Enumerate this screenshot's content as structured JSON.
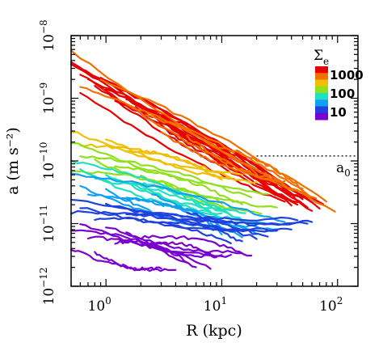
{
  "chart_data": {
    "type": "line",
    "xlabel": "R (kpc)",
    "ylabel": "a (m s⁻²)",
    "xscale": "log",
    "yscale": "log",
    "xlim": [
      0.5,
      150
    ],
    "ylim": [
      1e-12,
      1e-08
    ],
    "grid": false,
    "x_ticks": [
      {
        "base": "10",
        "exp": "0",
        "value": 1
      },
      {
        "base": "10",
        "exp": "1",
        "value": 10
      },
      {
        "base": "10",
        "exp": "2",
        "value": 100
      }
    ],
    "y_ticks": [
      {
        "base": "10",
        "exp": "−12",
        "value": 1e-12
      },
      {
        "base": "10",
        "exp": "−11",
        "value": 1e-11
      },
      {
        "base": "10",
        "exp": "−10",
        "value": 1e-10
      },
      {
        "base": "10",
        "exp": "−9",
        "value": 1e-09
      },
      {
        "base": "10",
        "exp": "−8",
        "value": 1e-08
      }
    ],
    "reference_line": {
      "label": "a",
      "label_sub": "0",
      "value": 1.2e-10,
      "style": "dotted",
      "from_x": 20
    },
    "legend": {
      "placement": "top-right",
      "title": "Σ",
      "title_sub": "e",
      "entries": [
        "1000",
        "100",
        "10"
      ],
      "colors": [
        "#e80000",
        "#f07000",
        "#f0c000",
        "#90e020",
        "#20e0c0",
        "#10a0f0",
        "#2040e0",
        "#7a00d0"
      ]
    },
    "series": [
      {
        "color": "#e80000",
        "x": [
          0.5,
          75
        ],
        "y": [
          4e-09,
          2e-11
        ]
      },
      {
        "color": "#e80000",
        "x": [
          0.55,
          60
        ],
        "y": [
          3e-09,
          2.2e-11
        ]
      },
      {
        "color": "#e80000",
        "x": [
          0.6,
          50
        ],
        "y": [
          2.5e-09,
          2.5e-11
        ]
      },
      {
        "color": "#e80000",
        "x": [
          0.7,
          55
        ],
        "y": [
          2e-09,
          1.8e-11
        ]
      },
      {
        "color": "#e80000",
        "x": [
          0.8,
          45
        ],
        "y": [
          1.6e-09,
          2e-11
        ]
      },
      {
        "color": "#e80000",
        "x": [
          1.0,
          40
        ],
        "y": [
          1.4e-09,
          2e-11
        ]
      },
      {
        "color": "#e80000",
        "x": [
          0.6,
          35
        ],
        "y": [
          1.2e-09,
          2.2e-11
        ]
      },
      {
        "color": "#e80000",
        "x": [
          1.5,
          70
        ],
        "y": [
          1e-09,
          1.8e-11
        ]
      },
      {
        "color": "#e80000",
        "x": [
          2.0,
          50
        ],
        "y": [
          8e-10,
          2.5e-11
        ]
      },
      {
        "color": "#e80000",
        "x": [
          1.2,
          30
        ],
        "y": [
          9e-10,
          3e-11
        ]
      },
      {
        "color": "#e80000",
        "x": [
          2.5,
          45
        ],
        "y": [
          6e-10,
          2.2e-11
        ]
      },
      {
        "color": "#e80000",
        "x": [
          3.0,
          60
        ],
        "y": [
          5e-10,
          1.6e-11
        ]
      },
      {
        "color": "#e80000",
        "x": [
          0.9,
          25
        ],
        "y": [
          2.2e-09,
          5e-11
        ]
      },
      {
        "color": "#e80000",
        "x": [
          4.0,
          40
        ],
        "y": [
          4e-10,
          3e-11
        ]
      },
      {
        "color": "#e80000",
        "x": [
          1.8,
          20
        ],
        "y": [
          7e-10,
          6e-11
        ]
      },
      {
        "color": "#e80000",
        "x": [
          0.5,
          30
        ],
        "y": [
          3.5e-09,
          4e-11
        ]
      },
      {
        "color": "#f07000",
        "x": [
          0.5,
          95
        ],
        "y": [
          5.5e-09,
          1.6e-11
        ]
      },
      {
        "color": "#f07000",
        "x": [
          0.9,
          80
        ],
        "y": [
          2e-09,
          2.2e-11
        ]
      },
      {
        "color": "#f07000",
        "x": [
          1.5,
          55
        ],
        "y": [
          8e-10,
          2.8e-11
        ]
      },
      {
        "color": "#f07000",
        "x": [
          2.2,
          65
        ],
        "y": [
          5.5e-10,
          2.5e-11
        ]
      },
      {
        "color": "#f07000",
        "x": [
          3.0,
          35
        ],
        "y": [
          2.8e-10,
          4.5e-11
        ]
      },
      {
        "color": "#f07000",
        "x": [
          0.6,
          20
        ],
        "y": [
          1.5e-09,
          6.5e-11
        ]
      },
      {
        "color": "#f07000",
        "x": [
          5.0,
          30
        ],
        "y": [
          2.5e-10,
          5e-11
        ]
      },
      {
        "color": "#f07000",
        "x": [
          8.0,
          50
        ],
        "y": [
          1.8e-10,
          3.5e-11
        ]
      },
      {
        "color": "#f0c000",
        "x": [
          0.5,
          15
        ],
        "y": [
          3e-10,
          6e-11
        ]
      },
      {
        "color": "#f0c000",
        "x": [
          0.6,
          12
        ],
        "y": [
          1.8e-10,
          5.5e-11
        ]
      },
      {
        "color": "#f0c000",
        "x": [
          1.0,
          20
        ],
        "y": [
          2.2e-10,
          4.5e-11
        ]
      },
      {
        "color": "#f0c000",
        "x": [
          1.5,
          10
        ],
        "y": [
          1.5e-10,
          5e-11
        ]
      },
      {
        "color": "#90e020",
        "x": [
          0.5,
          25
        ],
        "y": [
          2e-10,
          3e-11
        ]
      },
      {
        "color": "#90e020",
        "x": [
          0.6,
          18
        ],
        "y": [
          1.2e-10,
          2.5e-11
        ]
      },
      {
        "color": "#90e020",
        "x": [
          0.8,
          30
        ],
        "y": [
          1e-10,
          1.8e-11
        ]
      },
      {
        "color": "#90e020",
        "x": [
          1.2,
          15
        ],
        "y": [
          8e-11,
          2e-11
        ]
      },
      {
        "color": "#90e020",
        "x": [
          2.0,
          22
        ],
        "y": [
          6e-11,
          1.5e-11
        ]
      },
      {
        "color": "#90e020",
        "x": [
          0.5,
          10
        ],
        "y": [
          7e-11,
          2.2e-11
        ]
      },
      {
        "color": "#90e020",
        "x": [
          3.0,
          12
        ],
        "y": [
          5e-11,
          1.8e-11
        ]
      },
      {
        "color": "#20e0c0",
        "x": [
          0.5,
          14
        ],
        "y": [
          1e-10,
          1.2e-11
        ]
      },
      {
        "color": "#20e0c0",
        "x": [
          0.6,
          10
        ],
        "y": [
          7e-11,
          1.4e-11
        ]
      },
      {
        "color": "#20e0c0",
        "x": [
          0.8,
          20
        ],
        "y": [
          5e-11,
          9e-12
        ]
      },
      {
        "color": "#20e0c0",
        "x": [
          1.0,
          16
        ],
        "y": [
          6e-11,
          1.5e-11
        ]
      },
      {
        "color": "#20e0c0",
        "x": [
          1.5,
          8
        ],
        "y": [
          4.5e-11,
          1.5e-11
        ]
      },
      {
        "color": "#20e0c0",
        "x": [
          2.0,
          25
        ],
        "y": [
          4e-11,
          1e-11
        ]
      },
      {
        "color": "#10a0f0",
        "x": [
          0.5,
          35
        ],
        "y": [
          6e-11,
          1e-11
        ]
      },
      {
        "color": "#10a0f0",
        "x": [
          0.6,
          12
        ],
        "y": [
          4e-11,
          8e-12
        ]
      },
      {
        "color": "#10a0f0",
        "x": [
          0.7,
          20
        ],
        "y": [
          3e-11,
          7e-12
        ]
      },
      {
        "color": "#10a0f0",
        "x": [
          1.0,
          9
        ],
        "y": [
          3.5e-11,
          9e-12
        ]
      },
      {
        "color": "#10a0f0",
        "x": [
          1.5,
          15
        ],
        "y": [
          2.5e-11,
          6e-12
        ]
      },
      {
        "color": "#10a0f0",
        "x": [
          2.5,
          30
        ],
        "y": [
          3e-11,
          8e-12
        ]
      },
      {
        "color": "#10a0f0",
        "x": [
          3.0,
          10
        ],
        "y": [
          2e-11,
          7e-12
        ]
      },
      {
        "color": "#2040e0",
        "x": [
          0.5,
          45
        ],
        "y": [
          2.5e-11,
          1.2e-11
        ]
      },
      {
        "color": "#2040e0",
        "x": [
          0.5,
          20
        ],
        "y": [
          1.5e-11,
          6e-12
        ]
      },
      {
        "color": "#2040e0",
        "x": [
          0.6,
          30
        ],
        "y": [
          1.8e-11,
          8e-12
        ]
      },
      {
        "color": "#2040e0",
        "x": [
          0.8,
          12
        ],
        "y": [
          1.2e-11,
          5e-12
        ]
      },
      {
        "color": "#2040e0",
        "x": [
          1.0,
          55
        ],
        "y": [
          2e-11,
          1e-11
        ]
      },
      {
        "color": "#2040e0",
        "x": [
          1.5,
          25
        ],
        "y": [
          1.4e-11,
          6e-12
        ]
      },
      {
        "color": "#2040e0",
        "x": [
          2.0,
          40
        ],
        "y": [
          1.6e-11,
          8e-12
        ]
      },
      {
        "color": "#2040e0",
        "x": [
          3.0,
          15
        ],
        "y": [
          1e-11,
          5e-12
        ]
      },
      {
        "color": "#2040e0",
        "x": [
          5.0,
          60
        ],
        "y": [
          1.5e-11,
          1.1e-11
        ]
      },
      {
        "color": "#7a00d0",
        "x": [
          0.5,
          8
        ],
        "y": [
          8e-12,
          2e-12
        ]
      },
      {
        "color": "#7a00d0",
        "x": [
          0.6,
          12
        ],
        "y": [
          1e-11,
          3e-12
        ]
      },
      {
        "color": "#7a00d0",
        "x": [
          0.7,
          6
        ],
        "y": [
          6e-12,
          2e-12
        ]
      },
      {
        "color": "#7a00d0",
        "x": [
          1.0,
          15
        ],
        "y": [
          9e-12,
          3.5e-12
        ]
      },
      {
        "color": "#7a00d0",
        "x": [
          1.2,
          5
        ],
        "y": [
          5e-12,
          2.5e-12
        ]
      },
      {
        "color": "#7a00d0",
        "x": [
          1.5,
          10
        ],
        "y": [
          7e-12,
          3e-12
        ]
      },
      {
        "color": "#7a00d0",
        "x": [
          2.0,
          18
        ],
        "y": [
          6e-12,
          3e-12
        ]
      },
      {
        "color": "#7a00d0",
        "x": [
          0.5,
          4
        ],
        "y": [
          4e-12,
          1.8e-12
        ]
      },
      {
        "color": "#7a00d0",
        "x": [
          2.5,
          9
        ],
        "y": [
          4.5e-12,
          2.8e-12
        ]
      },
      {
        "color": "#7a00d0",
        "x": [
          0.8,
          3
        ],
        "y": [
          3.5e-12,
          2e-12
        ]
      }
    ]
  }
}
